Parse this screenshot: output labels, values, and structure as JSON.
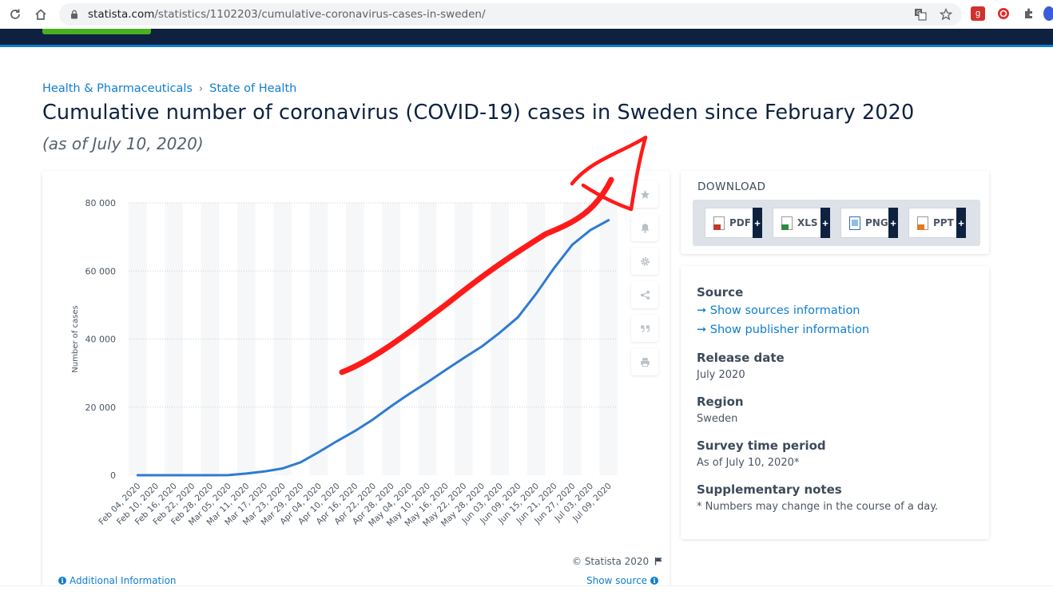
{
  "browser": {
    "url_host": "statista.com",
    "url_path": "/statistics/1102203/cumulative-coronavirus-cases-in-sweden/",
    "icons": [
      "reload-icon",
      "home-icon",
      "lock-icon",
      "translate-icon",
      "star-icon",
      "extension-icon"
    ]
  },
  "breadcrumb": {
    "items": [
      "Health & Pharmaceuticals",
      "State of Health"
    ],
    "separator": "›"
  },
  "page": {
    "title": "Cumulative number of coronavirus (COVID-19) cases in Sweden since February 2020",
    "subtitle": "(as of July 10, 2020)"
  },
  "chart": {
    "copyright": "© Statista 2020",
    "additional_info": "Additional Information",
    "show_source": "Show source"
  },
  "chart_data": {
    "type": "line",
    "title": "",
    "xlabel": "",
    "ylabel": "Number of cases",
    "ylim": [
      0,
      80000
    ],
    "yticks": [
      0,
      20000,
      40000,
      60000,
      80000
    ],
    "ytick_labels": [
      "0",
      "20 000",
      "40 000",
      "60 000",
      "80 000"
    ],
    "grid": true,
    "line_color": "#2d7bd4",
    "x_labels": [
      "Feb 04, 2020",
      "Feb 10, 2020",
      "Feb 16, 2020",
      "Feb 22, 2020",
      "Feb 28, 2020",
      "Mar 05, 2020",
      "Mar 11, 2020",
      "Mar 17, 2020",
      "Mar 23, 2020",
      "Mar 29, 2020",
      "Apr 04, 2020",
      "Apr 10, 2020",
      "Apr 16, 2020",
      "Apr 22, 2020",
      "Apr 28, 2020",
      "May 04, 2020",
      "May 10, 2020",
      "May 16, 2020",
      "May 22, 2020",
      "May 28, 2020",
      "Jun 03, 2020",
      "Jun 09, 2020",
      "Jun 15, 2020",
      "Jun 21, 2020",
      "Jun 27, 2020",
      "Jul 03, 2020",
      "Jul 09, 2020"
    ],
    "series": [
      {
        "values": [
          1,
          1,
          1,
          1,
          2,
          35,
          500,
          1100,
          2000,
          3800,
          6800,
          10000,
          13000,
          16400,
          20300,
          23900,
          27300,
          30900,
          34400,
          37800,
          41900,
          46400,
          53300,
          60900,
          67700,
          72000,
          74900
        ]
      }
    ]
  },
  "download": {
    "heading": "DOWNLOAD",
    "buttons": [
      {
        "label": "PDF",
        "color": "#c0392b"
      },
      {
        "label": "XLS",
        "color": "#2e8b3d"
      },
      {
        "label": "PNG",
        "color": "#2f6fb3"
      },
      {
        "label": "PPT",
        "color": "#e07b22"
      }
    ],
    "plus": "+"
  },
  "meta": {
    "source_heading": "Source",
    "source_links": [
      "Show sources information",
      "Show publisher information"
    ],
    "arrow": "➞",
    "release_heading": "Release date",
    "release_value": "July 2020",
    "region_heading": "Region",
    "region_value": "Sweden",
    "period_heading": "Survey time period",
    "period_value": "As of July 10, 2020*",
    "notes_heading": "Supplementary notes",
    "notes_value": "* Numbers may change in the course of a day."
  },
  "colors": {
    "accent": "#0f7ed1",
    "header": "#0e2240",
    "annotation": "#ff1a1a"
  }
}
